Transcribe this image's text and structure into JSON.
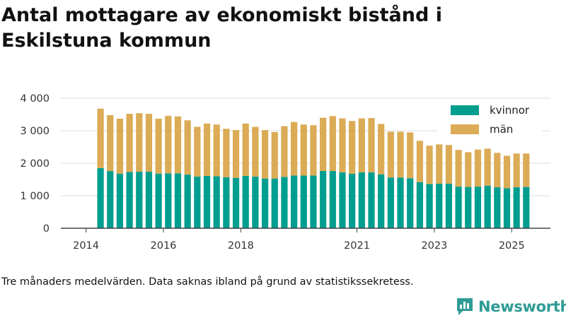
{
  "title": "Antal mottagare av ekonomiskt bistånd i Eskilstuna kommun",
  "note": "Tre månaders medelvärden. Data saknas ibland på grund av statistikssekretess.",
  "logo": {
    "text": "Newsworthy",
    "icon": "newsworthy-logo-icon",
    "color": "#2f9c94"
  },
  "chart_data": {
    "type": "bar",
    "stacked": true,
    "title": "Antal mottagare av ekonomiskt bistånd i Eskilstuna kommun",
    "xlabel": "",
    "ylabel": "",
    "ylim": [
      0,
      4000
    ],
    "yticks": [
      0,
      1000,
      2000,
      3000,
      4000
    ],
    "ytick_labels": [
      "0",
      "1 000",
      "2 000",
      "3 000",
      "4 000"
    ],
    "xticks": [
      2014,
      2016,
      2018,
      2021,
      2023,
      2025
    ],
    "xtick_labels": [
      "2014",
      "2016",
      "2018",
      "2021",
      "2023",
      "2025"
    ],
    "grid": true,
    "legend_position": "top-right",
    "categories": [
      "2014-Q2",
      "2014-Q3",
      "2014-Q4",
      "2015-Q1",
      "2015-Q2",
      "2015-Q3",
      "2015-Q4",
      "2016-Q1",
      "2016-Q2",
      "2016-Q3",
      "2016-Q4",
      "2017-Q1",
      "2017-Q2",
      "2017-Q3",
      "2017-Q4",
      "2018-Q1",
      "2018-Q2",
      "2018-Q3",
      "2018-Q4",
      "2019-Q1",
      "2019-Q2",
      "2019-Q3",
      "2019-Q4",
      "2020-Q1",
      "2020-Q2",
      "2020-Q3",
      "2020-Q4",
      "2021-Q1",
      "2021-Q2",
      "2021-Q3",
      "2021-Q4",
      "2022-Q1",
      "2022-Q2",
      "2022-Q3",
      "2022-Q4",
      "2023-Q1",
      "2023-Q2",
      "2023-Q3",
      "2023-Q4",
      "2024-Q1",
      "2024-Q2",
      "2024-Q3",
      "2024-Q4",
      "2025-Q1",
      "2025-Q2"
    ],
    "x": [
      2014.375,
      2014.625,
      2014.875,
      2015.125,
      2015.375,
      2015.625,
      2015.875,
      2016.125,
      2016.375,
      2016.625,
      2016.875,
      2017.125,
      2017.375,
      2017.625,
      2017.875,
      2018.125,
      2018.375,
      2018.625,
      2018.875,
      2019.125,
      2019.375,
      2019.625,
      2019.875,
      2020.125,
      2020.375,
      2020.625,
      2020.875,
      2021.125,
      2021.375,
      2021.625,
      2021.875,
      2022.125,
      2022.375,
      2022.625,
      2022.875,
      2023.125,
      2023.375,
      2023.625,
      2023.875,
      2024.125,
      2024.375,
      2024.625,
      2024.875,
      2025.125,
      2025.375
    ],
    "series": [
      {
        "name": "kvinnor",
        "color": "#009e8f",
        "values": [
          1850,
          1760,
          1680,
          1730,
          1740,
          1740,
          1680,
          1690,
          1690,
          1650,
          1590,
          1610,
          1600,
          1570,
          1550,
          1610,
          1590,
          1530,
          1530,
          1580,
          1620,
          1620,
          1620,
          1760,
          1760,
          1720,
          1680,
          1720,
          1720,
          1660,
          1560,
          1560,
          1540,
          1420,
          1360,
          1370,
          1370,
          1280,
          1270,
          1280,
          1310,
          1260,
          1230,
          1260,
          1270
        ]
      },
      {
        "name": "män",
        "color": "#dbab55",
        "values": [
          1830,
          1720,
          1690,
          1790,
          1800,
          1780,
          1690,
          1770,
          1750,
          1670,
          1530,
          1610,
          1590,
          1490,
          1470,
          1610,
          1530,
          1490,
          1430,
          1560,
          1650,
          1570,
          1550,
          1640,
          1690,
          1660,
          1620,
          1660,
          1670,
          1550,
          1410,
          1410,
          1410,
          1270,
          1180,
          1210,
          1190,
          1130,
          1070,
          1140,
          1140,
          1060,
          1000,
          1040,
          1030
        ]
      }
    ]
  }
}
